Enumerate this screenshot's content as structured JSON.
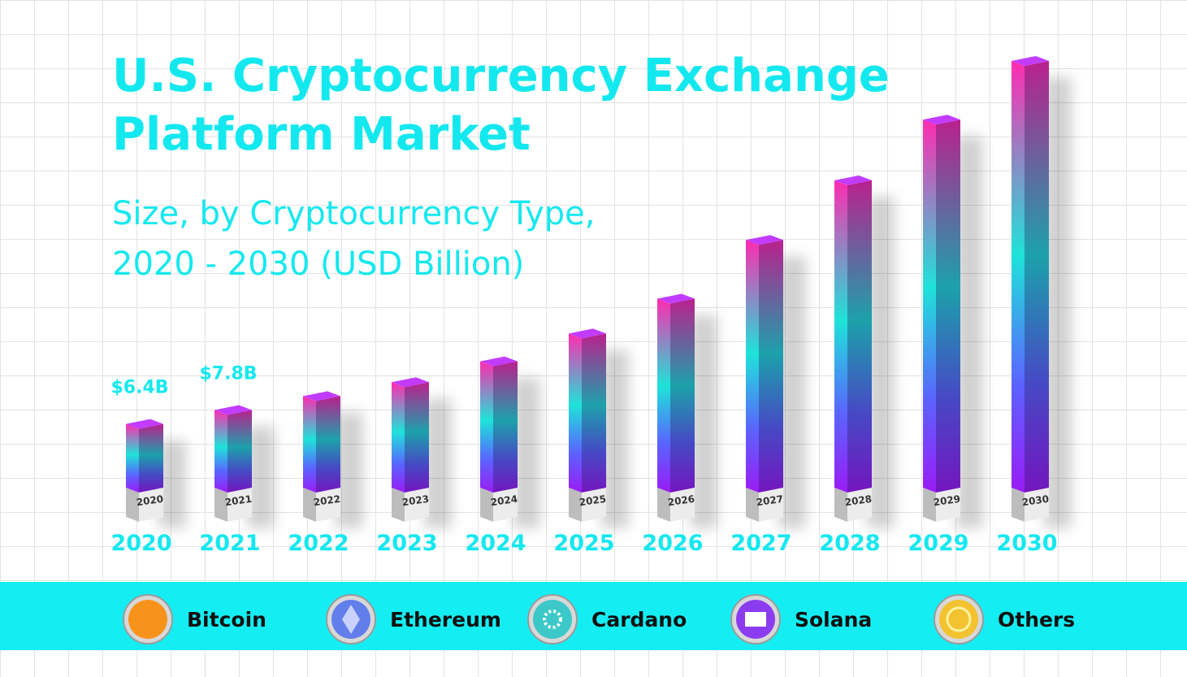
{
  "chart_data": {
    "type": "bar",
    "title": "U.S. Cryptocurrency Exchange Platform Market",
    "subtitle": "Size, by Cryptocurrency Type, 2020 - 2030 (USD Billion)",
    "categories": [
      "2020",
      "2021",
      "2022",
      "2023",
      "2024",
      "2025",
      "2026",
      "2027",
      "2028",
      "2029",
      "2030"
    ],
    "values": [
      6.4,
      7.8,
      9.2,
      10.6,
      12.7,
      15.5,
      19.0,
      24.9,
      30.9,
      37.0,
      42.9
    ],
    "value_labels": [
      "$6.4B",
      "$7.8B",
      null,
      null,
      null,
      null,
      null,
      null,
      null,
      null,
      null
    ],
    "legend": [
      "Bitcoin",
      "Ethereum",
      "Cardano",
      "Solana",
      "Others"
    ]
  }
}
